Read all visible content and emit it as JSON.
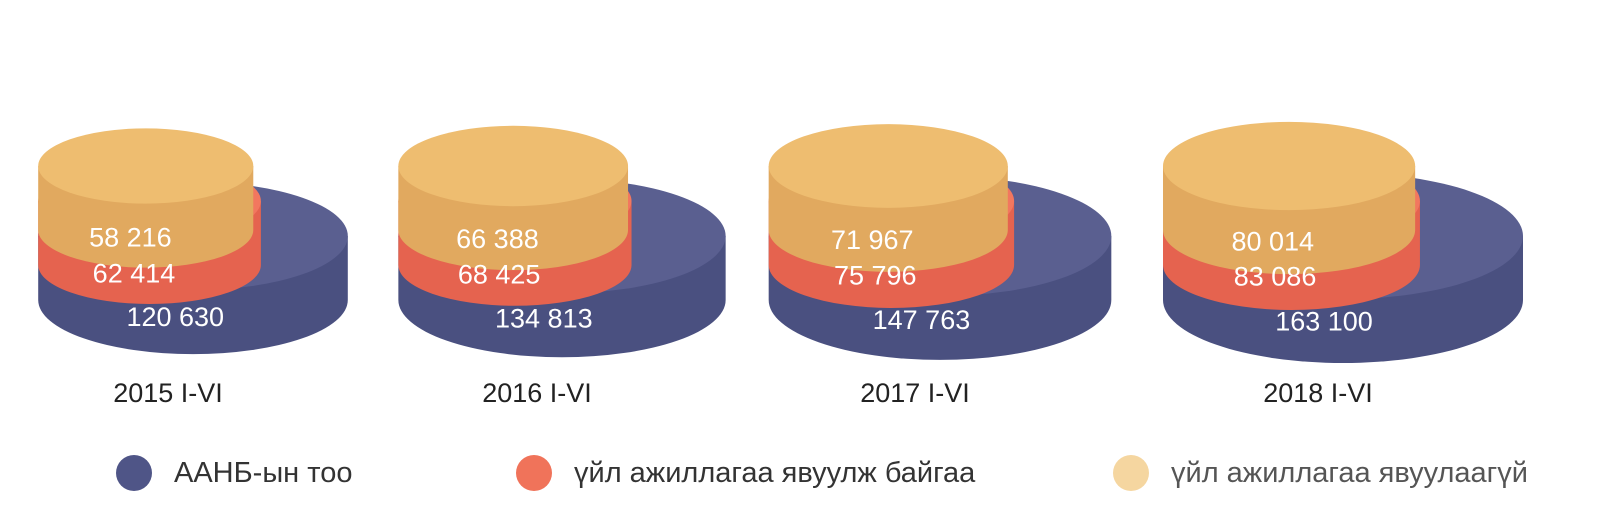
{
  "chart_data": {
    "type": "stacked-cylinder",
    "categories": [
      "2015 I-VI",
      "2016 I-VI",
      "2017 I-VI",
      "2018 I-VI"
    ],
    "series": [
      {
        "name": "ААНБ-ын тоо",
        "color": "#4f5587",
        "values": [
          120630,
          134813,
          147763,
          163100
        ],
        "labels": [
          "120 630",
          "134 813",
          "147 763",
          "163 100"
        ]
      },
      {
        "name": "үйл ажиллагаа явуулж байгаа",
        "color": "#f0735a",
        "values": [
          62414,
          68425,
          75796,
          83086
        ],
        "labels": [
          "62 414",
          "68 425",
          "75 796",
          "83 086"
        ]
      },
      {
        "name": "үйл ажиллагаа явуулаагүй",
        "color": "#efbd6e",
        "values": [
          58216,
          66388,
          71967,
          80014
        ],
        "labels": [
          "58 216",
          "66 388",
          "71 967",
          "80 014"
        ]
      }
    ],
    "legend_position": "bottom"
  },
  "colors": {
    "navy_top": "#5a5f90",
    "navy_side": "#4a5080",
    "orange_top": "#f2775f",
    "orange_side": "#e5634f",
    "yellow_top": "#eebd70",
    "yellow_side": "#e1a95f",
    "legend_navy": "#4f5587",
    "legend_orange": "#f0735a",
    "legend_yellow": "#f5d6a0"
  }
}
